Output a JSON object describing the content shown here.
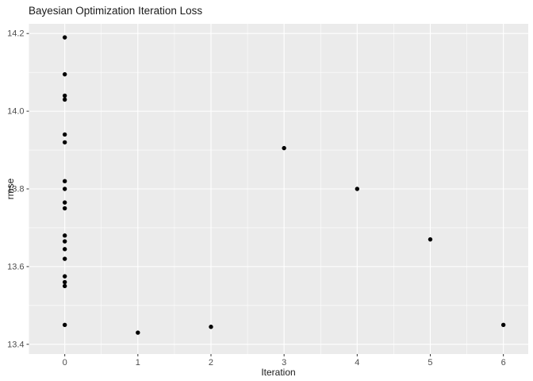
{
  "page": {
    "background": "#ffffff"
  },
  "chart_data": {
    "type": "scatter",
    "title": "Bayesian Optimization Iteration Loss",
    "xlabel": "Iteration",
    "ylabel": "rmse",
    "xlim": [
      -0.49,
      6.34
    ],
    "ylim": [
      13.375,
      14.225
    ],
    "x_ticks": [
      0,
      1,
      2,
      3,
      4,
      5,
      6
    ],
    "x_tick_labels": [
      "0",
      "1",
      "2",
      "3",
      "4",
      "5",
      "6"
    ],
    "y_ticks": [
      13.4,
      13.6,
      13.8,
      14.0,
      14.2
    ],
    "y_tick_labels": [
      "13.4",
      "13.6",
      "13.8",
      "14.0",
      "14.2"
    ],
    "x_minor_ticks": [
      0.5,
      1.5,
      2.5,
      3.5,
      4.5,
      5.5
    ],
    "y_minor_ticks": [
      13.5,
      13.7,
      13.9,
      14.1
    ],
    "grid": true,
    "legend": "none",
    "style": {
      "panel_bg": "#EBEBEB",
      "grid_major": "#FFFFFF",
      "grid_minor": "#FFFFFF",
      "point_color": "#000000",
      "tick_mark_color": "#333333",
      "tick_label_color": "#4D4D4D",
      "axis_title_color": "#1a1a1a",
      "title_color": "#1a1a1a",
      "point_radius": 2.7
    },
    "points": [
      [
        0,
        14.19
      ],
      [
        0,
        14.095
      ],
      [
        0,
        14.04
      ],
      [
        0,
        14.03
      ],
      [
        0,
        13.94
      ],
      [
        0,
        13.92
      ],
      [
        0,
        13.82
      ],
      [
        0,
        13.8
      ],
      [
        0,
        13.765
      ],
      [
        0,
        13.75
      ],
      [
        0,
        13.68
      ],
      [
        0,
        13.665
      ],
      [
        0,
        13.645
      ],
      [
        0,
        13.62
      ],
      [
        0,
        13.575
      ],
      [
        0,
        13.56
      ],
      [
        0,
        13.55
      ],
      [
        0,
        13.45
      ],
      [
        1,
        13.43
      ],
      [
        2,
        13.445
      ],
      [
        3,
        13.905
      ],
      [
        4,
        13.8
      ],
      [
        5,
        13.67
      ],
      [
        6,
        13.45
      ]
    ]
  }
}
